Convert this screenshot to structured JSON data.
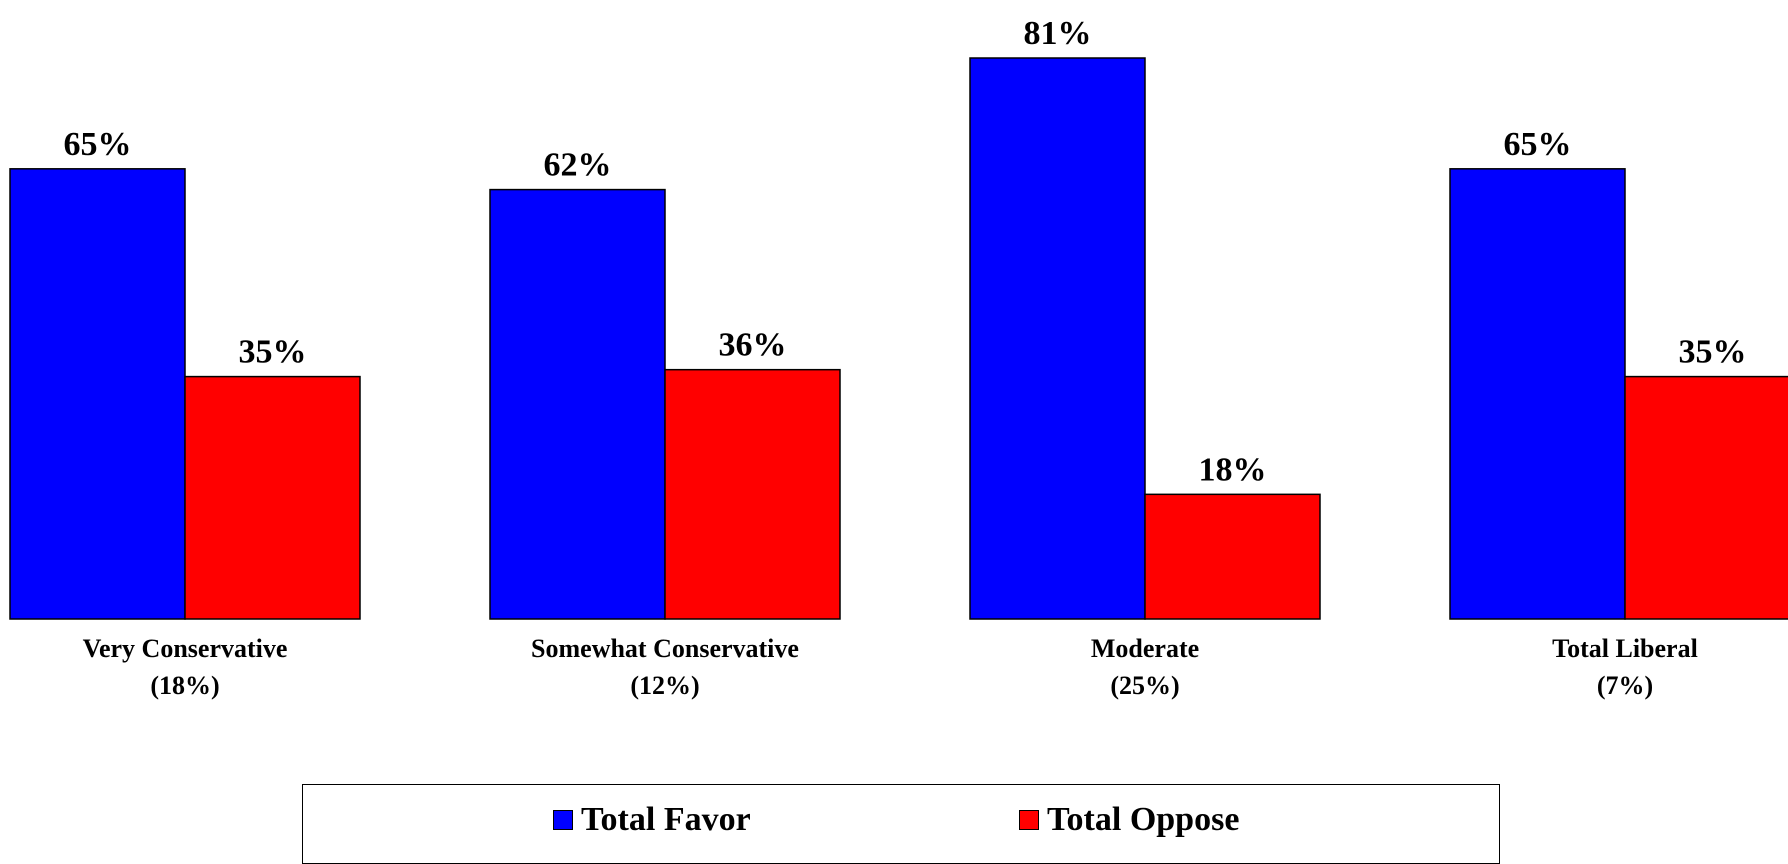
{
  "chart_data": {
    "type": "bar",
    "categories": [
      [
        "Very Conservative",
        "(18%)"
      ],
      [
        "Somewhat Conservative",
        "(12%)"
      ],
      [
        "Moderate",
        "(25%)"
      ],
      [
        "Total Liberal",
        "(7%)"
      ]
    ],
    "series": [
      {
        "name": "Total Favor",
        "color": "#0000FF",
        "values": [
          65,
          62,
          81,
          65
        ],
        "labels": [
          "65%",
          "62%",
          "81%",
          "65%"
        ]
      },
      {
        "name": "Total Oppose",
        "color": "#FF0000",
        "values": [
          35,
          36,
          18,
          35
        ],
        "labels": [
          "35%",
          "36%",
          "18%",
          "35%"
        ]
      }
    ],
    "ylim": [
      0,
      81
    ],
    "grid": false,
    "legend_position": "bottom"
  }
}
